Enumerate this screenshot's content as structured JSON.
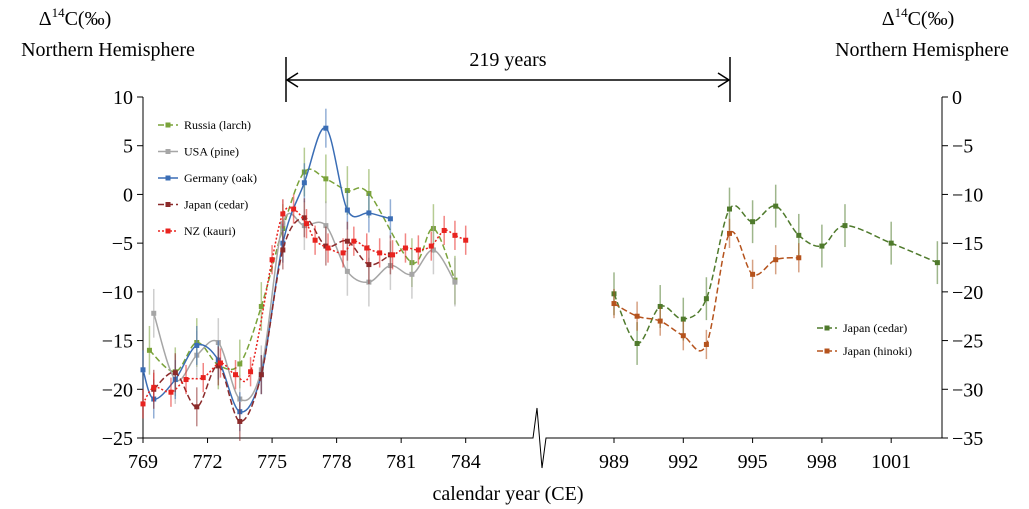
{
  "chart_data": [
    {
      "type": "line",
      "xlabel": "calendar year (CE)",
      "annotation": "219 years",
      "ylabel": [
        "Δ",
        "14",
        "C(‰)"
      ],
      "ylabel_note": "Northern Hemisphere",
      "xlim": [
        769,
        784.2
      ],
      "xticks": [
        769,
        772,
        775,
        778,
        781,
        784
      ],
      "ylim": [
        -25,
        10
      ],
      "yticks": [
        -25,
        -20,
        -15,
        -10,
        -5,
        0,
        5,
        10
      ],
      "legend": "upper left",
      "series": [
        {
          "name": "Russia (larch)",
          "color": "#7aa33a",
          "linestyle": "dashed",
          "error": 2.5,
          "x": [
            769.3,
            770.5,
            771.5,
            772.5,
            773.5,
            774.5,
            775.5,
            776.5,
            777.5,
            778.5,
            779.5,
            781.5,
            782.5,
            783.5
          ],
          "values": [
            -16,
            -18.2,
            -15.2,
            -17.5,
            -17.4,
            -11.5,
            -3.5,
            2.3,
            1.6,
            0.4,
            0.1,
            -7,
            -3.5,
            -8.8
          ]
        },
        {
          "name": "USA (pine)",
          "color": "#a6a6a6",
          "linestyle": "solid",
          "error": 2.5,
          "x": [
            769.5,
            770.5,
            771.5,
            772.5,
            773.5,
            774.5,
            775.5,
            776.5,
            777.5,
            778.5,
            779.5,
            780.5,
            781.5,
            782.5,
            783.5
          ],
          "values": [
            -12.2,
            -19,
            -16.5,
            -15.2,
            -21,
            -18,
            -3,
            -3.2,
            -3.2,
            -7.9,
            -9,
            -7.3,
            -8.2,
            -5.7,
            -9
          ]
        },
        {
          "name": "Germany (oak)",
          "color": "#3a6db5",
          "linestyle": "solid",
          "error": 2,
          "x": [
            769,
            769.5,
            770.5,
            771.5,
            772.5,
            773.5,
            774.5,
            775.5,
            776.5,
            777.5,
            778.5,
            779.5,
            780.5
          ],
          "values": [
            -18,
            -21,
            -19,
            -15.5,
            -17,
            -22.3,
            -18.5,
            -5,
            1.2,
            6.8,
            -1.6,
            -1.9,
            -2.5
          ]
        },
        {
          "name": "Japan (cedar)",
          "color": "#8b2a2a",
          "linestyle": "dashed",
          "error": 2,
          "x": [
            769.5,
            770.5,
            771.5,
            772.5,
            773.5,
            774.5,
            775.5,
            776.5,
            777.5,
            778.5,
            779.5,
            780.5
          ],
          "values": [
            -20,
            -18.3,
            -21.8,
            -17.6,
            -23.3,
            -18.5,
            -5.7,
            -2.4,
            -5.3,
            -4.8,
            -7.2,
            -6.2
          ]
        },
        {
          "name": "NZ (kauri)",
          "color": "#e8231f",
          "linestyle": "dotted",
          "error": 1.5,
          "x": [
            769,
            769.5,
            770.3,
            771,
            771.8,
            772.6,
            773.3,
            774,
            775,
            775.5,
            776,
            776.6,
            777,
            777.6,
            778.3,
            778.8,
            779.4,
            780,
            780.6,
            781.2,
            781.8,
            782.4,
            783,
            783.5,
            784
          ],
          "values": [
            -21.5,
            -19.8,
            -20.3,
            -19,
            -18.8,
            -17.3,
            -18.5,
            -18.2,
            -6.7,
            -2,
            -1.5,
            -3,
            -4.7,
            -5.5,
            -6,
            -4.8,
            -5.5,
            -6,
            -6.2,
            -5.5,
            -5.7,
            -5.3,
            -3.7,
            -4.2,
            -4.7
          ]
        }
      ]
    },
    {
      "type": "line",
      "ylabel": [
        "Δ",
        "14",
        "C(‰)"
      ],
      "ylabel_note": "Northern Hemisphere",
      "xlim": [
        989,
        1003.2
      ],
      "xticks": [
        989,
        992,
        995,
        998,
        1001
      ],
      "y2lim": [
        -35,
        0
      ],
      "y2ticks": [
        -35,
        -30,
        -25,
        -20,
        -15,
        -10,
        -5,
        0
      ],
      "legend": "lower right",
      "series": [
        {
          "name": "Japan (cedar)",
          "color": "#4f7a2c",
          "linestyle": "dashed",
          "axis": "y2",
          "error": 2.2,
          "x": [
            989,
            990,
            991,
            992,
            993,
            994,
            995,
            996,
            997,
            998,
            999,
            1001,
            1003
          ],
          "values": [
            -20.2,
            -25.3,
            -21.5,
            -22.8,
            -20.7,
            -11.5,
            -12.8,
            -11.2,
            -14.2,
            -15.3,
            -13.2,
            -15,
            -17
          ]
        },
        {
          "name": "Japan (hinoki)",
          "color": "#b5531d",
          "linestyle": "dashed",
          "axis": "y2",
          "error": 1.5,
          "x": [
            989,
            990,
            991,
            992,
            993,
            994,
            995,
            996,
            997
          ],
          "values": [
            -21.2,
            -22.5,
            -23,
            -24.5,
            -25.4,
            -14,
            -18.2,
            -16.7,
            -16.5
          ]
        }
      ]
    }
  ]
}
